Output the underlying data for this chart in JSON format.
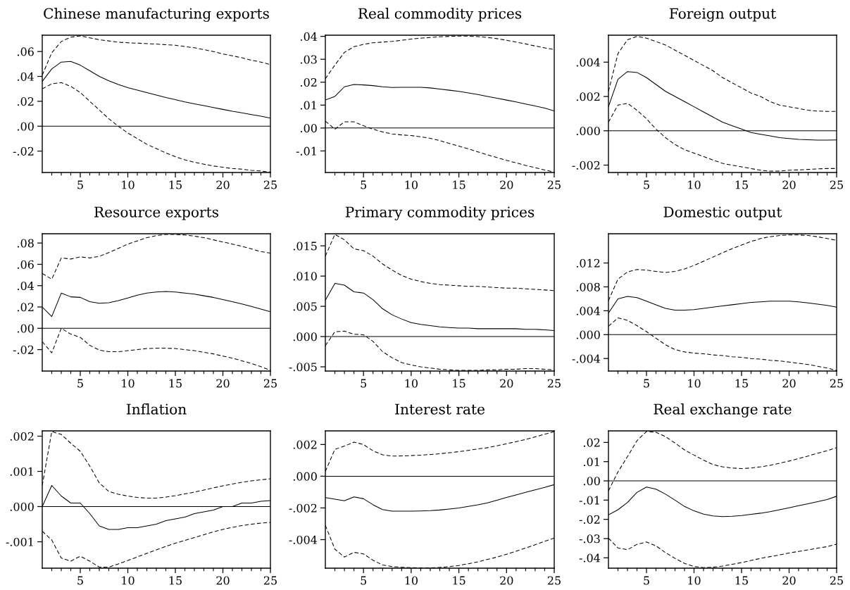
{
  "chart_data": [
    {
      "type": "line",
      "title": "Chinese manufacturing exports",
      "x": [
        1,
        2,
        3,
        4,
        5,
        6,
        7,
        8,
        9,
        10,
        11,
        12,
        13,
        14,
        15,
        16,
        17,
        18,
        19,
        20,
        21,
        22,
        23,
        24,
        25
      ],
      "series": [
        {
          "color": "#000000",
          "line_style": "solid",
          "values": [
            0.036,
            0.046,
            0.0515,
            0.052,
            0.049,
            0.0445,
            0.04,
            0.0365,
            0.0335,
            0.031,
            0.029,
            0.027,
            0.025,
            0.023,
            0.0213,
            0.0195,
            0.018,
            0.0165,
            0.015,
            0.0135,
            0.012,
            0.0107,
            0.0093,
            0.008,
            0.0065
          ]
        },
        {
          "color": "#000000",
          "line_style": "dashed",
          "values": [
            0.041,
            0.059,
            0.068,
            0.0715,
            0.0725,
            0.071,
            0.0695,
            0.0685,
            0.0675,
            0.067,
            0.0667,
            0.0663,
            0.066,
            0.0655,
            0.065,
            0.064,
            0.063,
            0.0615,
            0.06,
            0.058,
            0.0565,
            0.055,
            0.053,
            0.0515,
            0.0495
          ]
        },
        {
          "color": "#000000",
          "line_style": "dashed",
          "values": [
            0.03,
            0.034,
            0.035,
            0.032,
            0.027,
            0.02,
            0.013,
            0.006,
            0.0,
            -0.0055,
            -0.01,
            -0.0145,
            -0.018,
            -0.0215,
            -0.0245,
            -0.027,
            -0.029,
            -0.0305,
            -0.032,
            -0.033,
            -0.034,
            -0.0345,
            -0.0355,
            -0.036,
            -0.037
          ]
        }
      ],
      "xlim": [
        1,
        25
      ],
      "xticks": [
        {
          "value": 2,
          "label": null
        },
        {
          "value": 3,
          "label": null
        },
        {
          "value": 4,
          "label": null
        },
        5,
        {
          "value": 6,
          "label": null
        },
        {
          "value": 7,
          "label": null
        },
        {
          "value": 8,
          "label": null
        },
        {
          "value": 9,
          "label": null
        },
        10,
        {
          "value": 11,
          "label": null
        },
        {
          "value": 12,
          "label": null
        },
        {
          "value": 13,
          "label": null
        },
        {
          "value": 14,
          "label": null
        },
        15,
        {
          "value": 16,
          "label": null
        },
        {
          "value": 17,
          "label": null
        },
        {
          "value": 18,
          "label": null
        },
        {
          "value": 19,
          "label": null
        },
        20,
        {
          "value": 21,
          "label": null
        },
        {
          "value": 22,
          "label": null
        },
        {
          "value": 23,
          "label": null
        },
        {
          "value": 24,
          "label": null
        },
        25
      ],
      "ylim": [
        -0.0372,
        0.0731
      ],
      "yticks": [
        {
          "value": -0.02,
          "label": "-.02"
        },
        {
          "value": 0,
          "label": ".00"
        },
        {
          "value": 0.02,
          "label": ".02"
        },
        {
          "value": 0.04,
          "label": ".04"
        },
        {
          "value": 0.06,
          "label": ".06"
        }
      ],
      "ref_lines": [
        {
          "axis": "y",
          "value": 0,
          "color": "#000000"
        }
      ]
    },
    {
      "type": "line",
      "title": "Real commodity prices",
      "x": [
        1,
        2,
        3,
        4,
        5,
        6,
        7,
        8,
        9,
        10,
        11,
        12,
        13,
        14,
        15,
        16,
        17,
        18,
        19,
        20,
        21,
        22,
        23,
        24,
        25
      ],
      "series": [
        {
          "color": "#000000",
          "line_style": "solid",
          "values": [
            0.0122,
            0.0138,
            0.018,
            0.019,
            0.0188,
            0.0185,
            0.018,
            0.0177,
            0.0178,
            0.0178,
            0.0178,
            0.0175,
            0.017,
            0.0165,
            0.016,
            0.0153,
            0.0146,
            0.0138,
            0.013,
            0.0122,
            0.0114,
            0.0105,
            0.0096,
            0.0087,
            0.0075
          ]
        },
        {
          "color": "#000000",
          "line_style": "dashed",
          "values": [
            0.0215,
            0.0275,
            0.033,
            0.0355,
            0.0365,
            0.0372,
            0.0375,
            0.0378,
            0.0383,
            0.0388,
            0.0392,
            0.0395,
            0.0398,
            0.04,
            0.0401,
            0.0401,
            0.0399,
            0.0395,
            0.039,
            0.0383,
            0.0375,
            0.0367,
            0.0358,
            0.035,
            0.0342
          ]
        },
        {
          "color": "#000000",
          "line_style": "dashed",
          "values": [
            0.003,
            -0.0005,
            0.0027,
            0.0027,
            0.001,
            -0.0005,
            -0.0017,
            -0.0026,
            -0.003,
            -0.0033,
            -0.0038,
            -0.0045,
            -0.0055,
            -0.0067,
            -0.0079,
            -0.0091,
            -0.0104,
            -0.0117,
            -0.0129,
            -0.0141,
            -0.0152,
            -0.0163,
            -0.0173,
            -0.0183,
            -0.0192
          ]
        }
      ],
      "xlim": [
        1,
        25
      ],
      "xticks": [
        {
          "value": 2,
          "label": null
        },
        {
          "value": 3,
          "label": null
        },
        {
          "value": 4,
          "label": null
        },
        5,
        {
          "value": 6,
          "label": null
        },
        {
          "value": 7,
          "label": null
        },
        {
          "value": 8,
          "label": null
        },
        {
          "value": 9,
          "label": null
        },
        10,
        {
          "value": 11,
          "label": null
        },
        {
          "value": 12,
          "label": null
        },
        {
          "value": 13,
          "label": null
        },
        {
          "value": 14,
          "label": null
        },
        15,
        {
          "value": 16,
          "label": null
        },
        {
          "value": 17,
          "label": null
        },
        {
          "value": 18,
          "label": null
        },
        {
          "value": 19,
          "label": null
        },
        20,
        {
          "value": 21,
          "label": null
        },
        {
          "value": 22,
          "label": null
        },
        {
          "value": 23,
          "label": null
        },
        {
          "value": 24,
          "label": null
        },
        25
      ],
      "ylim": [
        -0.0194,
        0.0405
      ],
      "yticks": [
        {
          "value": -0.01,
          "label": "-.01"
        },
        {
          "value": 0,
          "label": ".00"
        },
        {
          "value": 0.01,
          "label": ".01"
        },
        {
          "value": 0.02,
          "label": ".02"
        },
        {
          "value": 0.03,
          "label": ".03"
        },
        {
          "value": 0.04,
          "label": ".04"
        }
      ],
      "ref_lines": [
        {
          "axis": "y",
          "value": 0,
          "color": "#000000"
        }
      ]
    },
    {
      "type": "line",
      "title": "Foreign output",
      "x": [
        1,
        2,
        3,
        4,
        5,
        6,
        7,
        8,
        9,
        10,
        11,
        12,
        13,
        14,
        15,
        16,
        17,
        18,
        19,
        20,
        21,
        22,
        23,
        24,
        25
      ],
      "series": [
        {
          "color": "#000000",
          "line_style": "solid",
          "values": [
            0.0014,
            0.003,
            0.00345,
            0.0034,
            0.0031,
            0.0027,
            0.0023,
            0.002,
            0.0017,
            0.0014,
            0.0011,
            0.0008,
            0.0005,
            0.0003,
            0.0001,
            -0.0001,
            -0.0002,
            -0.0003,
            -0.0004,
            -0.00045,
            -0.0005,
            -0.00052,
            -0.00054,
            -0.00054,
            -0.00053
          ]
        },
        {
          "color": "#000000",
          "line_style": "dashed",
          "values": [
            0.0023,
            0.0045,
            0.0053,
            0.0055,
            0.0054,
            0.0052,
            0.005,
            0.0047,
            0.0044,
            0.0041,
            0.0038,
            0.0035,
            0.0031,
            0.0028,
            0.0025,
            0.0022,
            0.002,
            0.0017,
            0.0015,
            0.0014,
            0.0013,
            0.0012,
            0.00115,
            0.00113,
            0.00113
          ]
        },
        {
          "color": "#000000",
          "line_style": "dashed",
          "values": [
            0.0005,
            0.0015,
            0.0016,
            0.0012,
            0.0007,
            0.0001,
            -0.0004,
            -0.0008,
            -0.0011,
            -0.0013,
            -0.0015,
            -0.0017,
            -0.0019,
            -0.002,
            -0.0021,
            -0.0022,
            -0.0023,
            -0.00235,
            -0.00235,
            -0.0023,
            -0.00228,
            -0.00225,
            -0.00222,
            -0.0022,
            -0.0022
          ]
        }
      ],
      "xlim": [
        1,
        25
      ],
      "xticks": [
        {
          "value": 2,
          "label": null
        },
        {
          "value": 3,
          "label": null
        },
        {
          "value": 4,
          "label": null
        },
        5,
        {
          "value": 6,
          "label": null
        },
        {
          "value": 7,
          "label": null
        },
        {
          "value": 8,
          "label": null
        },
        {
          "value": 9,
          "label": null
        },
        10,
        {
          "value": 11,
          "label": null
        },
        {
          "value": 12,
          "label": null
        },
        {
          "value": 13,
          "label": null
        },
        {
          "value": 14,
          "label": null
        },
        15,
        {
          "value": 16,
          "label": null
        },
        {
          "value": 17,
          "label": null
        },
        {
          "value": 18,
          "label": null
        },
        {
          "value": 19,
          "label": null
        },
        20,
        {
          "value": 21,
          "label": null
        },
        {
          "value": 22,
          "label": null
        },
        {
          "value": 23,
          "label": null
        },
        {
          "value": 24,
          "label": null
        },
        25
      ],
      "ylim": [
        -0.00243,
        0.00557
      ],
      "yticks": [
        {
          "value": -0.002,
          "label": "-.002"
        },
        {
          "value": 0,
          "label": ".000"
        },
        {
          "value": 0.002,
          "label": ".002"
        },
        {
          "value": 0.004,
          "label": ".004"
        }
      ],
      "ref_lines": [
        {
          "axis": "y",
          "value": 0,
          "color": "#000000"
        }
      ]
    },
    {
      "type": "line",
      "title": "Resource exports",
      "x": [
        1,
        2,
        3,
        4,
        5,
        6,
        7,
        8,
        9,
        10,
        11,
        12,
        13,
        14,
        15,
        16,
        17,
        18,
        19,
        20,
        21,
        22,
        23,
        24,
        25
      ],
      "series": [
        {
          "color": "#000000",
          "line_style": "solid",
          "values": [
            0.02,
            0.011,
            0.033,
            0.0295,
            0.029,
            0.025,
            0.0235,
            0.024,
            0.026,
            0.0285,
            0.031,
            0.033,
            0.034,
            0.0345,
            0.034,
            0.033,
            0.032,
            0.0305,
            0.029,
            0.027,
            0.025,
            0.0228,
            0.0205,
            0.018,
            0.0155
          ]
        },
        {
          "color": "#000000",
          "line_style": "dashed",
          "values": [
            0.0515,
            0.046,
            0.066,
            0.065,
            0.067,
            0.066,
            0.0675,
            0.071,
            0.075,
            0.079,
            0.082,
            0.085,
            0.087,
            0.088,
            0.088,
            0.0875,
            0.0865,
            0.085,
            0.083,
            0.081,
            0.079,
            0.077,
            0.0745,
            0.072,
            0.0705
          ]
        },
        {
          "color": "#000000",
          "line_style": "dashed",
          "values": [
            -0.0125,
            -0.023,
            0.0,
            -0.0055,
            -0.0085,
            -0.016,
            -0.0205,
            -0.022,
            -0.022,
            -0.021,
            -0.02,
            -0.019,
            -0.0187,
            -0.0187,
            -0.019,
            -0.02,
            -0.021,
            -0.0225,
            -0.024,
            -0.026,
            -0.028,
            -0.0305,
            -0.033,
            -0.036,
            -0.0395
          ]
        }
      ],
      "xlim": [
        1,
        25
      ],
      "xticks": [
        {
          "value": 2,
          "label": null
        },
        {
          "value": 3,
          "label": null
        },
        {
          "value": 4,
          "label": null
        },
        5,
        {
          "value": 6,
          "label": null
        },
        {
          "value": 7,
          "label": null
        },
        {
          "value": 8,
          "label": null
        },
        {
          "value": 9,
          "label": null
        },
        10,
        {
          "value": 11,
          "label": null
        },
        {
          "value": 12,
          "label": null
        },
        {
          "value": 13,
          "label": null
        },
        {
          "value": 14,
          "label": null
        },
        15,
        {
          "value": 16,
          "label": null
        },
        {
          "value": 17,
          "label": null
        },
        {
          "value": 18,
          "label": null
        },
        {
          "value": 19,
          "label": null
        },
        20,
        {
          "value": 21,
          "label": null
        },
        {
          "value": 22,
          "label": null
        },
        {
          "value": 23,
          "label": null
        },
        {
          "value": 24,
          "label": null
        },
        25
      ],
      "ylim": [
        -0.0401,
        0.0887
      ],
      "yticks": [
        {
          "value": -0.02,
          "label": "-.02"
        },
        {
          "value": 0,
          "label": ".00"
        },
        {
          "value": 0.02,
          "label": ".02"
        },
        {
          "value": 0.04,
          "label": ".04"
        },
        {
          "value": 0.06,
          "label": ".06"
        },
        {
          "value": 0.08,
          "label": ".08"
        }
      ],
      "ref_lines": [
        {
          "axis": "y",
          "value": 0,
          "color": "#000000"
        }
      ]
    },
    {
      "type": "line",
      "title": "Primary commodity prices",
      "x": [
        1,
        2,
        3,
        4,
        5,
        6,
        7,
        8,
        9,
        10,
        11,
        12,
        13,
        14,
        15,
        16,
        17,
        18,
        19,
        20,
        21,
        22,
        23,
        24,
        25
      ],
      "series": [
        {
          "color": "#000000",
          "line_style": "solid",
          "values": [
            0.006,
            0.0088,
            0.0085,
            0.0074,
            0.0072,
            0.0061,
            0.0046,
            0.0036,
            0.0029,
            0.0023,
            0.002,
            0.0018,
            0.0016,
            0.0015,
            0.0014,
            0.0014,
            0.0013,
            0.0013,
            0.0013,
            0.0013,
            0.0013,
            0.0012,
            0.0012,
            0.0011,
            0.001
          ]
        },
        {
          "color": "#000000",
          "line_style": "dashed",
          "values": [
            0.0133,
            0.0169,
            0.016,
            0.0145,
            0.0142,
            0.0133,
            0.012,
            0.011,
            0.0101,
            0.0095,
            0.0091,
            0.0088,
            0.0086,
            0.0085,
            0.0084,
            0.0083,
            0.0083,
            0.0082,
            0.0081,
            0.008,
            0.008,
            0.0079,
            0.0078,
            0.0077,
            0.0076
          ]
        },
        {
          "color": "#000000",
          "line_style": "dashed",
          "values": [
            -0.0015,
            0.0008,
            0.0009,
            0.0004,
            0.0003,
            -0.0008,
            -0.0025,
            -0.0035,
            -0.0043,
            -0.0047,
            -0.005,
            -0.0052,
            -0.0054,
            -0.0055,
            -0.0056,
            -0.0056,
            -0.0056,
            -0.0055,
            -0.0055,
            -0.0054,
            -0.0054,
            -0.0053,
            -0.0053,
            -0.0054,
            -0.0055
          ]
        }
      ],
      "xlim": [
        1,
        25
      ],
      "xticks": [
        {
          "value": 2,
          "label": null
        },
        {
          "value": 3,
          "label": null
        },
        {
          "value": 4,
          "label": null
        },
        5,
        {
          "value": 6,
          "label": null
        },
        {
          "value": 7,
          "label": null
        },
        {
          "value": 8,
          "label": null
        },
        {
          "value": 9,
          "label": null
        },
        10,
        {
          "value": 11,
          "label": null
        },
        {
          "value": 12,
          "label": null
        },
        {
          "value": 13,
          "label": null
        },
        {
          "value": 14,
          "label": null
        },
        15,
        {
          "value": 16,
          "label": null
        },
        {
          "value": 17,
          "label": null
        },
        {
          "value": 18,
          "label": null
        },
        {
          "value": 19,
          "label": null
        },
        20,
        {
          "value": 21,
          "label": null
        },
        {
          "value": 22,
          "label": null
        },
        {
          "value": 23,
          "label": null
        },
        {
          "value": 24,
          "label": null
        },
        25
      ],
      "ylim": [
        -0.0057,
        0.017
      ],
      "yticks": [
        {
          "value": -0.005,
          "label": "-.005"
        },
        {
          "value": 0,
          "label": ".000"
        },
        {
          "value": 0.005,
          "label": ".005"
        },
        {
          "value": 0.01,
          "label": ".010"
        },
        {
          "value": 0.015,
          "label": ".015"
        }
      ],
      "ref_lines": [
        {
          "axis": "y",
          "value": 0,
          "color": "#000000"
        }
      ]
    },
    {
      "type": "line",
      "title": "Domestic output",
      "x": [
        1,
        2,
        3,
        4,
        5,
        6,
        7,
        8,
        9,
        10,
        11,
        12,
        13,
        14,
        15,
        16,
        17,
        18,
        19,
        20,
        21,
        22,
        23,
        24,
        25
      ],
      "series": [
        {
          "color": "#000000",
          "line_style": "solid",
          "values": [
            0.0036,
            0.006,
            0.0064,
            0.0062,
            0.0056,
            0.005,
            0.0044,
            0.0041,
            0.0041,
            0.0042,
            0.0044,
            0.0046,
            0.0048,
            0.005,
            0.0052,
            0.0054,
            0.0055,
            0.0056,
            0.0056,
            0.0056,
            0.0055,
            0.0053,
            0.0051,
            0.0049,
            0.0046
          ]
        },
        {
          "color": "#000000",
          "line_style": "dashed",
          "values": [
            0.0057,
            0.0093,
            0.0105,
            0.0109,
            0.0108,
            0.0106,
            0.0104,
            0.0106,
            0.011,
            0.0116,
            0.0123,
            0.013,
            0.0137,
            0.0144,
            0.015,
            0.0156,
            0.0161,
            0.0164,
            0.0166,
            0.0167,
            0.0167,
            0.0166,
            0.0164,
            0.0161,
            0.0158
          ]
        },
        {
          "color": "#000000",
          "line_style": "dashed",
          "values": [
            0.0014,
            0.0028,
            0.0024,
            0.0015,
            0.0005,
            -0.0006,
            -0.0017,
            -0.0025,
            -0.0029,
            -0.0031,
            -0.0032,
            -0.0034,
            -0.0035,
            -0.0037,
            -0.0038,
            -0.004,
            -0.0041,
            -0.0043,
            -0.0044,
            -0.0046,
            -0.0048,
            -0.005,
            -0.0053,
            -0.0056,
            -0.006
          ]
        }
      ],
      "xlim": [
        1,
        25
      ],
      "xticks": [
        {
          "value": 2,
          "label": null
        },
        {
          "value": 3,
          "label": null
        },
        {
          "value": 4,
          "label": null
        },
        5,
        {
          "value": 6,
          "label": null
        },
        {
          "value": 7,
          "label": null
        },
        {
          "value": 8,
          "label": null
        },
        {
          "value": 9,
          "label": null
        },
        10,
        {
          "value": 11,
          "label": null
        },
        {
          "value": 12,
          "label": null
        },
        {
          "value": 13,
          "label": null
        },
        {
          "value": 14,
          "label": null
        },
        15,
        {
          "value": 16,
          "label": null
        },
        {
          "value": 17,
          "label": null
        },
        {
          "value": 18,
          "label": null
        },
        {
          "value": 19,
          "label": null
        },
        20,
        {
          "value": 21,
          "label": null
        },
        {
          "value": 22,
          "label": null
        },
        {
          "value": 23,
          "label": null
        },
        {
          "value": 24,
          "label": null
        },
        25
      ],
      "ylim": [
        -0.0061,
        0.0169
      ],
      "yticks": [
        {
          "value": -0.004,
          "label": "-.004"
        },
        {
          "value": 0,
          "label": ".000"
        },
        {
          "value": 0.004,
          "label": ".004"
        },
        {
          "value": 0.008,
          "label": ".008"
        },
        {
          "value": 0.012,
          "label": ".012"
        }
      ],
      "ref_lines": [
        {
          "axis": "y",
          "value": 0,
          "color": "#000000"
        }
      ]
    },
    {
      "type": "line",
      "title": "Inflation",
      "x": [
        1,
        2,
        3,
        4,
        5,
        6,
        7,
        8,
        9,
        10,
        11,
        12,
        13,
        14,
        15,
        16,
        17,
        18,
        19,
        20,
        21,
        22,
        23,
        24,
        25
      ],
      "series": [
        {
          "color": "#000000",
          "line_style": "solid",
          "values": [
            0.0,
            0.0006,
            0.0003,
            0.0001,
            0.0001,
            -0.0002,
            -0.00055,
            -0.00065,
            -0.00065,
            -0.0006,
            -0.0006,
            -0.00055,
            -0.0005,
            -0.0004,
            -0.00035,
            -0.0003,
            -0.0002,
            -0.00015,
            -0.0001,
            0.0,
            0.0,
            0.0001,
            0.0001,
            0.00015,
            0.00017
          ]
        },
        {
          "color": "#000000",
          "line_style": "dashed",
          "values": [
            0.0006,
            0.00213,
            0.00205,
            0.0018,
            0.00157,
            0.00115,
            0.00067,
            0.00043,
            0.00035,
            0.0003,
            0.00026,
            0.00024,
            0.00024,
            0.00027,
            0.00031,
            0.00036,
            0.00041,
            0.00047,
            0.00053,
            0.00059,
            0.00064,
            0.00069,
            0.00073,
            0.00076,
            0.00079
          ]
        },
        {
          "color": "#000000",
          "line_style": "dashed",
          "values": [
            -0.0007,
            -0.00095,
            -0.00146,
            -0.00155,
            -0.00141,
            -0.00155,
            -0.00172,
            -0.00172,
            -0.00163,
            -0.00153,
            -0.00143,
            -0.00133,
            -0.00123,
            -0.00113,
            -0.00104,
            -0.00096,
            -0.00088,
            -0.0008,
            -0.00072,
            -0.00065,
            -0.00059,
            -0.00054,
            -0.0005,
            -0.00047,
            -0.00045
          ]
        }
      ],
      "xlim": [
        1,
        25
      ],
      "xticks": [
        {
          "value": 2,
          "label": null
        },
        {
          "value": 3,
          "label": null
        },
        {
          "value": 4,
          "label": null
        },
        5,
        {
          "value": 6,
          "label": null
        },
        {
          "value": 7,
          "label": null
        },
        {
          "value": 8,
          "label": null
        },
        {
          "value": 9,
          "label": null
        },
        10,
        {
          "value": 11,
          "label": null
        },
        {
          "value": 12,
          "label": null
        },
        {
          "value": 13,
          "label": null
        },
        {
          "value": 14,
          "label": null
        },
        15,
        {
          "value": 16,
          "label": null
        },
        {
          "value": 17,
          "label": null
        },
        {
          "value": 18,
          "label": null
        },
        {
          "value": 19,
          "label": null
        },
        20,
        {
          "value": 21,
          "label": null
        },
        {
          "value": 22,
          "label": null
        },
        {
          "value": 23,
          "label": null
        },
        {
          "value": 24,
          "label": null
        },
        25
      ],
      "ylim": [
        -0.00175,
        0.00215
      ],
      "yticks": [
        {
          "value": -0.001,
          "label": "-.001"
        },
        {
          "value": 0,
          "label": ".000"
        },
        {
          "value": 0.001,
          "label": ".001"
        },
        {
          "value": 0.002,
          "label": ".002"
        }
      ],
      "ref_lines": [
        {
          "axis": "y",
          "value": 0,
          "color": "#000000"
        }
      ]
    },
    {
      "type": "line",
      "title": "Interest rate",
      "x": [
        1,
        2,
        3,
        4,
        5,
        6,
        7,
        8,
        9,
        10,
        11,
        12,
        13,
        14,
        15,
        16,
        17,
        18,
        19,
        20,
        21,
        22,
        23,
        24,
        25
      ],
      "series": [
        {
          "color": "#000000",
          "line_style": "solid",
          "values": [
            -0.00135,
            -0.00145,
            -0.00155,
            -0.0013,
            -0.00142,
            -0.0018,
            -0.0021,
            -0.0022,
            -0.0022,
            -0.0022,
            -0.00219,
            -0.00217,
            -0.00213,
            -0.00207,
            -0.002,
            -0.0019,
            -0.0018,
            -0.00168,
            -0.00151,
            -0.00134,
            -0.00118,
            -0.00102,
            -0.00086,
            -0.0007,
            -0.00053
          ]
        },
        {
          "color": "#000000",
          "line_style": "dashed",
          "values": [
            0.0003,
            0.0017,
            0.0019,
            0.00215,
            0.002,
            0.0016,
            0.00135,
            0.00127,
            0.00128,
            0.0013,
            0.00133,
            0.00137,
            0.00142,
            0.00148,
            0.00155,
            0.00163,
            0.00172,
            0.0018,
            0.00192,
            0.00205,
            0.00218,
            0.00232,
            0.00248,
            0.00265,
            0.00282
          ]
        },
        {
          "color": "#000000",
          "line_style": "dashed",
          "values": [
            -0.0031,
            -0.0046,
            -0.0051,
            -0.0048,
            -0.0049,
            -0.0053,
            -0.0056,
            -0.0057,
            -0.00574,
            -0.00577,
            -0.00578,
            -0.00578,
            -0.00575,
            -0.0057,
            -0.00563,
            -0.00552,
            -0.0054,
            -0.00525,
            -0.0051,
            -0.00492,
            -0.00473,
            -0.00453,
            -0.00432,
            -0.0041,
            -0.0039
          ]
        }
      ],
      "xlim": [
        1,
        25
      ],
      "xticks": [
        {
          "value": 2,
          "label": null
        },
        {
          "value": 3,
          "label": null
        },
        {
          "value": 4,
          "label": null
        },
        5,
        {
          "value": 6,
          "label": null
        },
        {
          "value": 7,
          "label": null
        },
        {
          "value": 8,
          "label": null
        },
        {
          "value": 9,
          "label": null
        },
        10,
        {
          "value": 11,
          "label": null
        },
        {
          "value": 12,
          "label": null
        },
        {
          "value": 13,
          "label": null
        },
        {
          "value": 14,
          "label": null
        },
        15,
        {
          "value": 16,
          "label": null
        },
        {
          "value": 17,
          "label": null
        },
        {
          "value": 18,
          "label": null
        },
        {
          "value": 19,
          "label": null
        },
        20,
        {
          "value": 21,
          "label": null
        },
        {
          "value": 22,
          "label": null
        },
        {
          "value": 23,
          "label": null
        },
        {
          "value": 24,
          "label": null
        },
        25
      ],
      "ylim": [
        -0.0058,
        0.00286
      ],
      "yticks": [
        {
          "value": -0.004,
          "label": "-.004"
        },
        {
          "value": -0.002,
          "label": "-.002"
        },
        {
          "value": 0,
          "label": ".000"
        },
        {
          "value": 0.002,
          "label": ".002"
        }
      ],
      "ref_lines": [
        {
          "axis": "y",
          "value": 0,
          "color": "#000000"
        }
      ]
    },
    {
      "type": "line",
      "title": "Real exchange rate",
      "x": [
        1,
        2,
        3,
        4,
        5,
        6,
        7,
        8,
        9,
        10,
        11,
        12,
        13,
        14,
        15,
        16,
        17,
        18,
        19,
        20,
        21,
        22,
        23,
        24,
        25
      ],
      "series": [
        {
          "color": "#000000",
          "line_style": "solid",
          "values": [
            -0.0177,
            -0.015,
            -0.0112,
            -0.006,
            -0.0032,
            -0.0043,
            -0.0069,
            -0.01,
            -0.0133,
            -0.0156,
            -0.0173,
            -0.0182,
            -0.0186,
            -0.0184,
            -0.018,
            -0.0174,
            -0.0168,
            -0.016,
            -0.015,
            -0.014,
            -0.0129,
            -0.0119,
            -0.0108,
            -0.0097,
            -0.008
          ]
        },
        {
          "color": "#000000",
          "line_style": "dashed",
          "values": [
            -0.0052,
            0.0047,
            0.0126,
            0.0209,
            0.0257,
            0.0253,
            0.023,
            0.0197,
            0.0161,
            0.0134,
            0.0108,
            0.0085,
            0.0073,
            0.0067,
            0.0064,
            0.0067,
            0.0073,
            0.0081,
            0.0092,
            0.0103,
            0.0116,
            0.0129,
            0.0144,
            0.0157,
            0.0173
          ]
        },
        {
          "color": "#000000",
          "line_style": "dashed",
          "values": [
            -0.0298,
            -0.0349,
            -0.0358,
            -0.033,
            -0.0318,
            -0.0338,
            -0.0373,
            -0.0403,
            -0.0429,
            -0.0445,
            -0.0451,
            -0.0449,
            -0.0443,
            -0.0434,
            -0.0425,
            -0.0414,
            -0.0403,
            -0.0394,
            -0.0385,
            -0.0375,
            -0.0367,
            -0.0359,
            -0.035,
            -0.0342,
            -0.0329
          ]
        }
      ],
      "xlim": [
        1,
        25
      ],
      "xticks": [
        {
          "value": 2,
          "label": null
        },
        {
          "value": 3,
          "label": null
        },
        {
          "value": 4,
          "label": null
        },
        5,
        {
          "value": 6,
          "label": null
        },
        {
          "value": 7,
          "label": null
        },
        {
          "value": 8,
          "label": null
        },
        {
          "value": 9,
          "label": null
        },
        10,
        {
          "value": 11,
          "label": null
        },
        {
          "value": 12,
          "label": null
        },
        {
          "value": 13,
          "label": null
        },
        {
          "value": 14,
          "label": null
        },
        15,
        {
          "value": 16,
          "label": null
        },
        {
          "value": 17,
          "label": null
        },
        {
          "value": 18,
          "label": null
        },
        {
          "value": 19,
          "label": null
        },
        20,
        {
          "value": 21,
          "label": null
        },
        {
          "value": 22,
          "label": null
        },
        {
          "value": 23,
          "label": null
        },
        {
          "value": 24,
          "label": null
        },
        25
      ],
      "ylim": [
        -0.0454,
        0.026
      ],
      "yticks": [
        {
          "value": -0.04,
          "label": "-.04"
        },
        {
          "value": -0.03,
          "label": "-.03"
        },
        {
          "value": -0.02,
          "label": "-.02"
        },
        {
          "value": -0.01,
          "label": "-.01"
        },
        {
          "value": 0,
          "label": ".00"
        },
        {
          "value": 0.01,
          "label": ".01"
        },
        {
          "value": 0.02,
          "label": ".02"
        }
      ],
      "ref_lines": [
        {
          "axis": "y",
          "value": 0,
          "color": "#000000"
        }
      ]
    }
  ]
}
